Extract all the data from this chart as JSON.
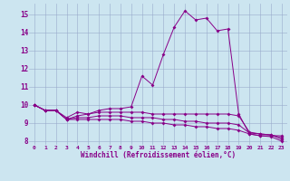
{
  "bg_color": "#cce5f0",
  "line_color": "#880088",
  "grid_color": "#99aacc",
  "xlabel": "Windchill (Refroidissement éolien,°C)",
  "xlabel_color": "#880088",
  "tick_color": "#880088",
  "xlim": [
    -0.5,
    23.5
  ],
  "ylim": [
    7.8,
    15.6
  ],
  "yticks": [
    8,
    9,
    10,
    11,
    12,
    13,
    14,
    15
  ],
  "xticks": [
    0,
    1,
    2,
    3,
    4,
    5,
    6,
    7,
    8,
    9,
    10,
    11,
    12,
    13,
    14,
    15,
    16,
    17,
    18,
    19,
    20,
    21,
    22,
    23
  ],
  "lines": [
    [
      10.0,
      9.7,
      9.7,
      9.3,
      9.6,
      9.5,
      9.7,
      9.8,
      9.8,
      9.9,
      11.6,
      11.1,
      12.8,
      14.3,
      15.2,
      14.7,
      14.8,
      14.1,
      14.2,
      9.5,
      8.4,
      8.3,
      8.3,
      8.3
    ],
    [
      10.0,
      9.7,
      9.7,
      9.2,
      9.4,
      9.5,
      9.6,
      9.6,
      9.6,
      9.6,
      9.6,
      9.5,
      9.5,
      9.5,
      9.5,
      9.5,
      9.5,
      9.5,
      9.5,
      9.4,
      8.5,
      8.4,
      8.35,
      8.2
    ],
    [
      10.0,
      9.7,
      9.7,
      9.2,
      9.3,
      9.3,
      9.4,
      9.4,
      9.4,
      9.3,
      9.3,
      9.3,
      9.2,
      9.2,
      9.1,
      9.1,
      9.0,
      9.0,
      9.0,
      8.9,
      8.45,
      8.4,
      8.35,
      8.1
    ],
    [
      10.0,
      9.7,
      9.7,
      9.2,
      9.2,
      9.2,
      9.2,
      9.2,
      9.2,
      9.1,
      9.1,
      9.0,
      9.0,
      8.9,
      8.9,
      8.8,
      8.8,
      8.7,
      8.7,
      8.6,
      8.4,
      8.3,
      8.25,
      8.0
    ]
  ]
}
